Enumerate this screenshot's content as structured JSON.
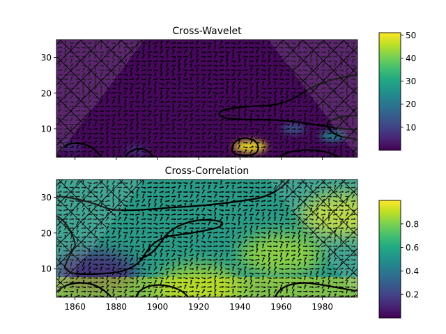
{
  "chart_data": [
    {
      "type": "heatmap",
      "title": "Cross-Wavelet",
      "xlabel": "",
      "ylabel": "",
      "xlim": [
        1851,
        1997
      ],
      "ylim": [
        2,
        35
      ],
      "yticks": [
        10,
        20,
        30
      ],
      "colorbar": {
        "range": [
          0,
          51
        ],
        "ticks": [
          10,
          20,
          30,
          40,
          50
        ],
        "colormap": "viridis"
      },
      "cone_of_influence": true,
      "hatch": "x",
      "arrows": true,
      "hotspots": [
        {
          "x": 1945,
          "y": 5,
          "value": 50
        },
        {
          "x": 1985,
          "y": 8,
          "value": 24
        },
        {
          "x": 1966,
          "y": 10,
          "value": 15
        },
        {
          "x": 1890,
          "y": 4,
          "value": 8
        },
        {
          "x": 1858,
          "y": 5,
          "value": 7
        }
      ]
    },
    {
      "type": "heatmap",
      "title": "Cross-Correlation",
      "xlabel": "",
      "ylabel": "",
      "xlim": [
        1851,
        1997
      ],
      "ylim": [
        2,
        35
      ],
      "xticks": [
        1860,
        1880,
        1900,
        1920,
        1940,
        1960,
        1980
      ],
      "yticks": [
        10,
        20,
        30
      ],
      "colorbar": {
        "range": [
          0,
          1
        ],
        "ticks": [
          0.2,
          0.4,
          0.6,
          0.8
        ],
        "colormap": "viridis"
      },
      "cone_of_influence": true,
      "hatch": "x",
      "arrows": true,
      "regions": [
        {
          "x": 1870,
          "y": 9,
          "value": 0.1
        },
        {
          "x": 1920,
          "y": 5,
          "value": 0.88
        },
        {
          "x": 1960,
          "y": 14,
          "value": 0.85
        },
        {
          "x": 1990,
          "y": 25,
          "value": 0.92
        }
      ]
    }
  ]
}
